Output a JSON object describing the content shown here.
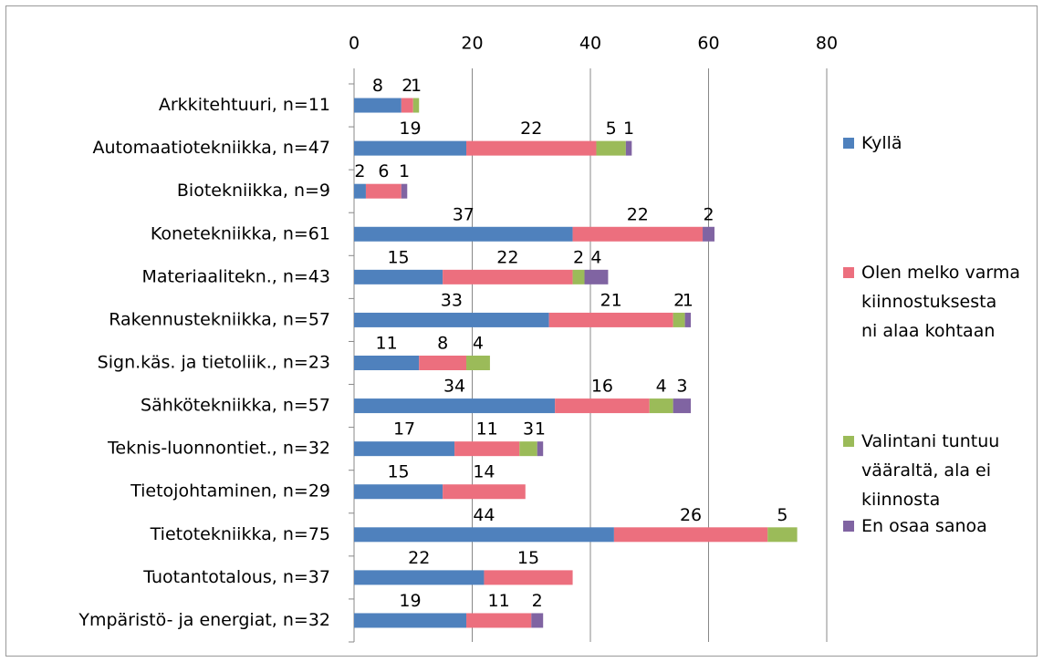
{
  "chart_data": {
    "type": "stacked_barh",
    "categories": [
      "Arkkitehtuuri, n=11",
      "Automaatiotekniikka, n=47",
      "Biotekniikka, n=9",
      "Konetekniikka, n=61",
      "Materiaalitekn., n=43",
      "Rakennustekniikka, n=57",
      "Sign.käs. ja tietoliik., n=23",
      "Sähkötekniikka, n=57",
      "Teknis-luonnontiet., n=32",
      "Tietojohtaminen, n=29",
      "Tietotekniikka, n=75",
      "Tuotantotalous, n=37",
      "Ympäristö- ja energiat, n=32"
    ],
    "series": [
      {
        "name": "Kyllä",
        "color": "#4f81bd",
        "values": [
          8,
          19,
          2,
          37,
          15,
          33,
          11,
          34,
          17,
          15,
          44,
          22,
          19
        ]
      },
      {
        "name": "Olen melko varma kiinnostuksesta ni alaa kohtaan",
        "color": "#ec6f7e",
        "values": [
          2,
          22,
          6,
          22,
          22,
          21,
          8,
          16,
          11,
          14,
          26,
          15,
          11
        ]
      },
      {
        "name": "Valintani tuntuu vääraltä, ala ei kiinnosta",
        "color": "#9bbb59",
        "values": [
          1,
          5,
          null,
          null,
          2,
          2,
          4,
          4,
          3,
          null,
          5,
          null,
          null
        ]
      },
      {
        "name": "En osaa sanoa",
        "color": "#8064a2",
        "values": [
          null,
          1,
          1,
          2,
          4,
          1,
          null,
          3,
          1,
          null,
          null,
          null,
          2
        ]
      }
    ],
    "xlim": [
      0,
      80
    ],
    "xticks": [
      0,
      20,
      40,
      60,
      80
    ],
    "grid": true,
    "legend": "right"
  }
}
